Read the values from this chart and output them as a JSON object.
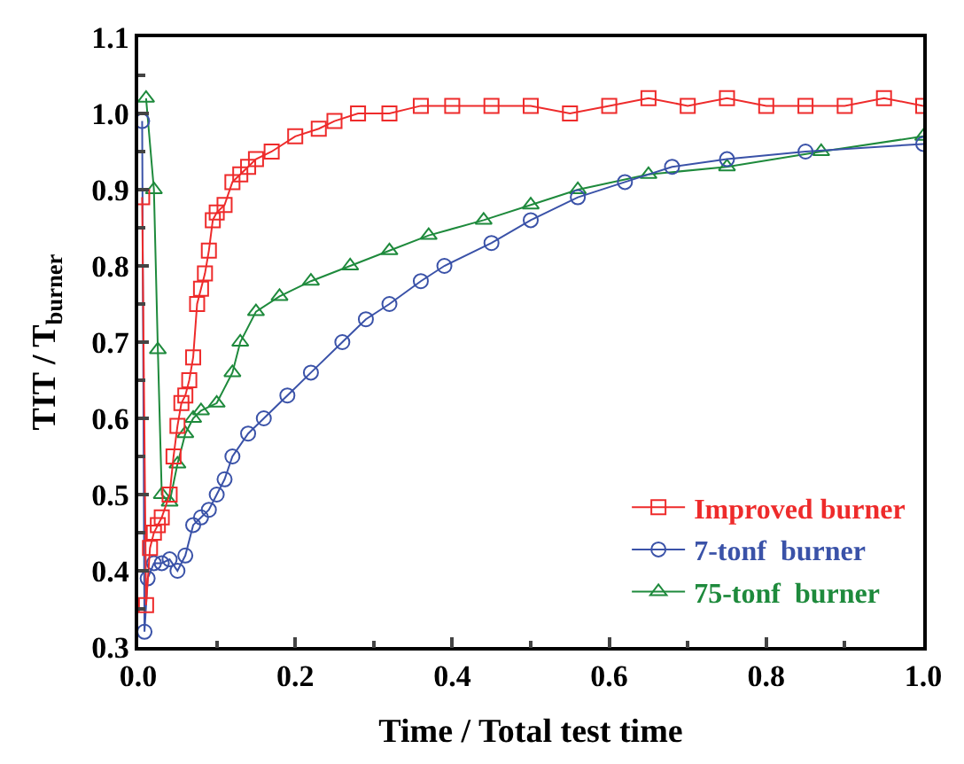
{
  "chart_data": {
    "type": "line",
    "xlabel": "Time / Total test time",
    "ylabel": "TIT / T$_{burner}$",
    "xlim": [
      0,
      1.0
    ],
    "ylim": [
      0.3,
      1.1
    ],
    "xticks": [
      {
        "value": 0,
        "label": "0.0"
      },
      {
        "value": 0.2,
        "label": "0.2"
      },
      {
        "value": 0.4,
        "label": "0.4"
      },
      {
        "value": 0.6,
        "label": "0.6"
      },
      {
        "value": 0.8,
        "label": "0.8"
      },
      {
        "value": 1.0,
        "label": "1.0"
      }
    ],
    "yticks": [
      {
        "value": 0.3,
        "label": "0.3"
      },
      {
        "value": 0.4,
        "label": "0.4"
      },
      {
        "value": 0.5,
        "label": "0.5"
      },
      {
        "value": 0.6,
        "label": "0.6"
      },
      {
        "value": 0.7,
        "label": "0.7"
      },
      {
        "value": 0.8,
        "label": "0.8"
      },
      {
        "value": 0.9,
        "label": "0.9"
      },
      {
        "value": 1.0,
        "label": "1.0"
      },
      {
        "value": 1.1,
        "label": "1.1"
      }
    ],
    "legend": "bottom right",
    "line_style": "solid",
    "series": [
      {
        "name": "Improved burner",
        "color": "#ee2b2b",
        "marker": "square",
        "x": [
          0.005,
          0.01,
          0.015,
          0.02,
          0.025,
          0.03,
          0.04,
          0.045,
          0.05,
          0.055,
          0.06,
          0.065,
          0.07,
          0.075,
          0.08,
          0.085,
          0.09,
          0.095,
          0.1,
          0.11,
          0.12,
          0.13,
          0.14,
          0.15,
          0.17,
          0.2,
          0.23,
          0.25,
          0.28,
          0.32,
          0.36,
          0.4,
          0.45,
          0.5,
          0.55,
          0.6,
          0.65,
          0.7,
          0.75,
          0.8,
          0.85,
          0.9,
          0.95,
          1.0
        ],
        "values": [
          0.89,
          0.355,
          0.43,
          0.45,
          0.46,
          0.47,
          0.5,
          0.55,
          0.59,
          0.62,
          0.63,
          0.65,
          0.68,
          0.75,
          0.77,
          0.79,
          0.82,
          0.86,
          0.87,
          0.88,
          0.91,
          0.92,
          0.93,
          0.94,
          0.95,
          0.97,
          0.98,
          0.99,
          1.0,
          1.0,
          1.01,
          1.01,
          1.01,
          1.01,
          1.0,
          1.01,
          1.02,
          1.01,
          1.02,
          1.01,
          1.01,
          1.01,
          1.02,
          1.01
        ]
      },
      {
        "name": "7-tonf  burner",
        "color": "#3a52a8",
        "marker": "circle",
        "x": [
          0.005,
          0.008,
          0.012,
          0.02,
          0.03,
          0.04,
          0.05,
          0.06,
          0.07,
          0.08,
          0.09,
          0.1,
          0.11,
          0.12,
          0.14,
          0.16,
          0.19,
          0.22,
          0.26,
          0.29,
          0.32,
          0.36,
          0.39,
          0.45,
          0.5,
          0.56,
          0.62,
          0.68,
          0.75,
          0.85,
          1.0
        ],
        "values": [
          0.99,
          0.32,
          0.39,
          0.41,
          0.41,
          0.415,
          0.4,
          0.42,
          0.46,
          0.47,
          0.48,
          0.5,
          0.52,
          0.55,
          0.58,
          0.6,
          0.63,
          0.66,
          0.7,
          0.73,
          0.75,
          0.78,
          0.8,
          0.83,
          0.86,
          0.89,
          0.91,
          0.93,
          0.94,
          0.95,
          0.96
        ]
      },
      {
        "name": "75-tonf  burner",
        "color": "#1e8a3c",
        "marker": "triangle",
        "x": [
          0.01,
          0.02,
          0.025,
          0.03,
          0.04,
          0.05,
          0.06,
          0.07,
          0.08,
          0.1,
          0.12,
          0.13,
          0.15,
          0.18,
          0.22,
          0.27,
          0.32,
          0.37,
          0.44,
          0.5,
          0.56,
          0.65,
          0.75,
          0.87,
          1.0
        ],
        "values": [
          1.02,
          0.9,
          0.69,
          0.5,
          0.49,
          0.54,
          0.58,
          0.6,
          0.61,
          0.62,
          0.66,
          0.7,
          0.74,
          0.76,
          0.78,
          0.8,
          0.82,
          0.84,
          0.86,
          0.88,
          0.9,
          0.92,
          0.93,
          0.95,
          0.97
        ]
      }
    ]
  }
}
